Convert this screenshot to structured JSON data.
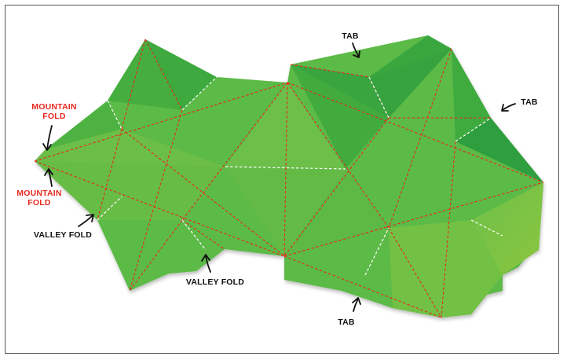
{
  "labels": {
    "mountain_fold_top": "MOUNTAIN\nFOLD",
    "mountain_fold_bottom": "MOUNTAIN\nFOLD",
    "valley_fold_left": "VALLEY FOLD",
    "valley_fold_bottom": "VALLEY FOLD",
    "tab_top": "TAB",
    "tab_right": "TAB",
    "tab_bottom": "TAB"
  },
  "colors": {
    "mountain_fold": "#e8281e",
    "valley_fold": "#ffffff",
    "paper_green": "#5cba46",
    "paper_green_dark": "#3aa83f",
    "paper_green_light": "#8cc63f",
    "label_red": "#e8281e",
    "label_black": "#111111"
  }
}
